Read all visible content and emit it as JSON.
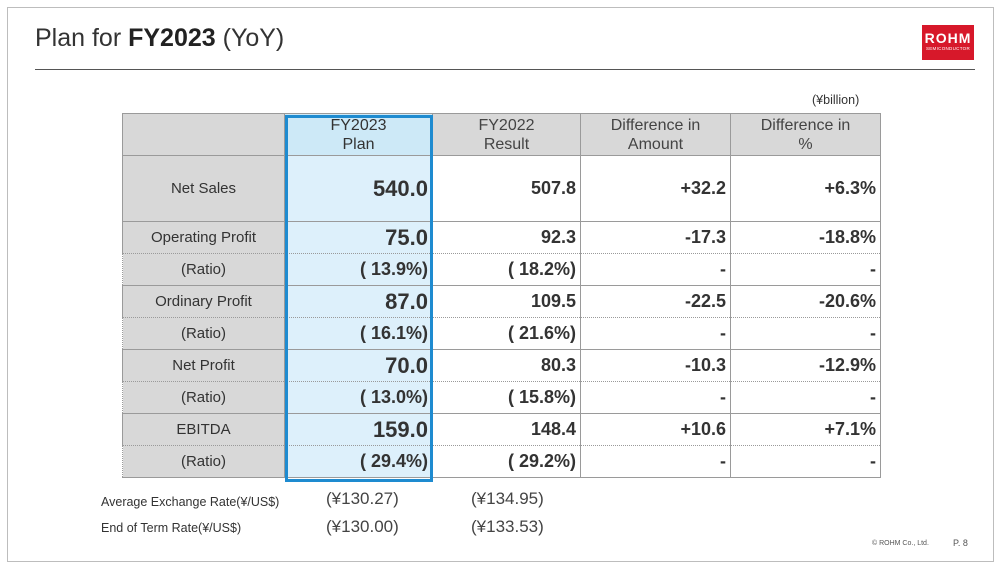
{
  "slide": {
    "title_prefix": "Plan for ",
    "title_bold": "FY2023",
    "title_suffix": " (YoY)",
    "unit": "(¥billion)",
    "logo_text": "ROHM",
    "logo_subtext": "SEMICONDUCTOR",
    "copyright": "© ROHM Co., Ltd.",
    "page": "P. 8"
  },
  "table": {
    "headers": {
      "plan_line1": "FY2023",
      "plan_line2": "Plan",
      "result_line1": "FY2022",
      "result_line2": "Result",
      "diff_amount_line1": "Difference in",
      "diff_amount_line2": "Amount",
      "diff_pct_line1": "Difference in",
      "diff_pct_line2": "%"
    },
    "rows": [
      {
        "label": "Net Sales",
        "plan": "540.0",
        "result": "507.8",
        "diff": "+32.2",
        "pct": "+6.3%"
      },
      {
        "label": "Operating Profit",
        "plan": "75.0",
        "result": "92.3",
        "diff": "-17.3",
        "pct": "-18.8%"
      },
      {
        "label": "(Ratio)",
        "plan": "( 13.9%)",
        "result": "( 18.2%)",
        "diff": "-",
        "pct": "-"
      },
      {
        "label": "Ordinary Profit",
        "plan": "87.0",
        "result": "109.5",
        "diff": "-22.5",
        "pct": "-20.6%"
      },
      {
        "label": "(Ratio)",
        "plan": "( 16.1%)",
        "result": "( 21.6%)",
        "diff": "-",
        "pct": "-"
      },
      {
        "label": "Net Profit",
        "plan": "70.0",
        "result": "80.3",
        "diff": "-10.3",
        "pct": "-12.9%"
      },
      {
        "label": "(Ratio)",
        "plan": "( 13.0%)",
        "result": "( 15.8%)",
        "diff": "-",
        "pct": "-"
      },
      {
        "label": "EBITDA",
        "plan": "159.0",
        "result": "148.4",
        "diff": "+10.6",
        "pct": "+7.1%"
      },
      {
        "label": "(Ratio)",
        "plan": "( 29.4%)",
        "result": "( 29.2%)",
        "diff": "-",
        "pct": "-"
      }
    ]
  },
  "exchange_rates": {
    "average_label": "Average Exchange Rate(¥/US$)",
    "average_plan": "(¥130.27)",
    "average_result": "(¥134.95)",
    "end_label": "End of Term Rate(¥/US$)",
    "end_plan": "(¥130.00)",
    "end_result": "(¥133.53)"
  },
  "colors": {
    "highlight_border": "#1e8bd0",
    "highlight_fill": "#ddf0fb",
    "header_gray": "#d8d8d8",
    "logo_red": "#d7182a"
  }
}
